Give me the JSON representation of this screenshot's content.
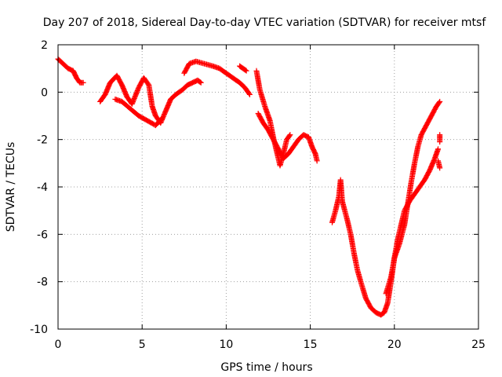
{
  "chart_data": {
    "type": "scatter",
    "title": "Day 207 of 2018, Sidereal Day-to-day VTEC variation (SDTVAR) for receiver mtsf",
    "xlabel": "GPS time / hours",
    "ylabel": "SDTVAR / TECUs",
    "xlim": [
      0,
      25
    ],
    "ylim": [
      -10,
      2
    ],
    "grid": true,
    "x_ticks": [
      "0",
      "5",
      "10",
      "15",
      "20",
      "25"
    ],
    "y_ticks": [
      "2",
      "0",
      "-2",
      "-4",
      "-6",
      "-8",
      "-10"
    ],
    "marker": "+",
    "series": [
      {
        "name": "SDTVAR",
        "color": "#ff0000",
        "segments": [
          [
            [
              0.0,
              1.4
            ],
            [
              0.3,
              1.2
            ],
            [
              0.6,
              1.0
            ],
            [
              0.9,
              0.9
            ],
            [
              1.1,
              0.6
            ],
            [
              1.3,
              0.4
            ],
            [
              1.5,
              0.4
            ]
          ],
          [
            [
              2.5,
              -0.4
            ],
            [
              2.8,
              -0.1
            ],
            [
              3.1,
              0.4
            ],
            [
              3.5,
              0.7
            ],
            [
              3.8,
              0.3
            ],
            [
              4.1,
              -0.2
            ],
            [
              4.4,
              -0.5
            ],
            [
              4.8,
              0.2
            ],
            [
              5.1,
              0.6
            ],
            [
              5.4,
              0.3
            ],
            [
              5.6,
              -0.6
            ],
            [
              5.8,
              -1.0
            ],
            [
              6.1,
              -1.3
            ],
            [
              6.4,
              -0.8
            ],
            [
              6.7,
              -0.3
            ],
            [
              7.0,
              -0.1
            ],
            [
              7.4,
              0.1
            ],
            [
              7.7,
              0.3
            ],
            [
              8.0,
              0.4
            ],
            [
              8.3,
              0.5
            ],
            [
              8.5,
              0.4
            ]
          ],
          [
            [
              3.4,
              -0.3
            ],
            [
              3.8,
              -0.4
            ],
            [
              4.3,
              -0.7
            ],
            [
              4.8,
              -1.0
            ],
            [
              5.3,
              -1.2
            ],
            [
              5.8,
              -1.4
            ],
            [
              6.2,
              -1.1
            ]
          ],
          [
            [
              7.5,
              0.8
            ],
            [
              7.8,
              1.2
            ],
            [
              8.2,
              1.3
            ],
            [
              8.7,
              1.2
            ],
            [
              9.2,
              1.1
            ],
            [
              9.6,
              1.0
            ],
            [
              10.0,
              0.8
            ],
            [
              10.4,
              0.6
            ],
            [
              10.8,
              0.4
            ],
            [
              11.1,
              0.2
            ],
            [
              11.4,
              -0.1
            ]
          ],
          [
            [
              10.8,
              1.1
            ],
            [
              11.0,
              1.0
            ],
            [
              11.2,
              0.9
            ]
          ],
          [
            [
              11.8,
              0.9
            ],
            [
              11.9,
              0.5
            ],
            [
              12.0,
              0.1
            ],
            [
              12.3,
              -0.6
            ],
            [
              12.6,
              -1.2
            ],
            [
              12.8,
              -1.9
            ],
            [
              13.0,
              -2.5
            ],
            [
              13.2,
              -3.1
            ],
            [
              13.4,
              -2.6
            ],
            [
              13.6,
              -2.0
            ],
            [
              13.8,
              -1.8
            ]
          ],
          [
            [
              11.9,
              -0.9
            ],
            [
              12.2,
              -1.3
            ],
            [
              12.5,
              -1.6
            ],
            [
              12.8,
              -2.0
            ],
            [
              13.1,
              -2.4
            ],
            [
              13.4,
              -2.8
            ],
            [
              13.7,
              -2.6
            ],
            [
              14.0,
              -2.3
            ],
            [
              14.3,
              -2.0
            ],
            [
              14.6,
              -1.8
            ],
            [
              14.9,
              -1.9
            ],
            [
              15.1,
              -2.3
            ],
            [
              15.3,
              -2.6
            ],
            [
              15.4,
              -2.9
            ]
          ],
          [
            [
              16.3,
              -5.5
            ],
            [
              16.5,
              -5.0
            ],
            [
              16.7,
              -4.4
            ],
            [
              16.8,
              -3.7
            ],
            [
              16.9,
              -4.6
            ],
            [
              17.2,
              -5.4
            ],
            [
              17.4,
              -6.0
            ],
            [
              17.6,
              -6.8
            ],
            [
              17.8,
              -7.5
            ],
            [
              18.0,
              -8.0
            ],
            [
              18.3,
              -8.7
            ],
            [
              18.6,
              -9.1
            ],
            [
              18.9,
              -9.3
            ],
            [
              19.2,
              -9.4
            ],
            [
              19.4,
              -9.3
            ],
            [
              19.6,
              -8.9
            ],
            [
              19.8,
              -8.0
            ],
            [
              20.0,
              -7.0
            ],
            [
              20.2,
              -6.2
            ],
            [
              20.4,
              -5.6
            ],
            [
              20.6,
              -5.0
            ],
            [
              20.9,
              -4.6
            ],
            [
              21.2,
              -4.3
            ],
            [
              21.5,
              -4.0
            ],
            [
              21.8,
              -3.7
            ],
            [
              22.1,
              -3.3
            ],
            [
              22.4,
              -2.8
            ],
            [
              22.6,
              -2.4
            ]
          ],
          [
            [
              19.5,
              -8.5
            ],
            [
              19.8,
              -7.8
            ],
            [
              20.0,
              -7.0
            ],
            [
              20.3,
              -6.4
            ],
            [
              20.6,
              -5.6
            ],
            [
              20.8,
              -4.7
            ],
            [
              21.0,
              -3.8
            ],
            [
              21.2,
              -3.0
            ],
            [
              21.4,
              -2.3
            ],
            [
              21.6,
              -1.8
            ],
            [
              21.9,
              -1.4
            ],
            [
              22.2,
              -1.0
            ],
            [
              22.5,
              -0.6
            ],
            [
              22.7,
              -0.4
            ]
          ],
          [
            [
              22.7,
              -1.8
            ],
            [
              22.7,
              -2.1
            ]
          ],
          [
            [
              22.6,
              -2.9
            ],
            [
              22.7,
              -3.2
            ]
          ]
        ]
      }
    ]
  }
}
